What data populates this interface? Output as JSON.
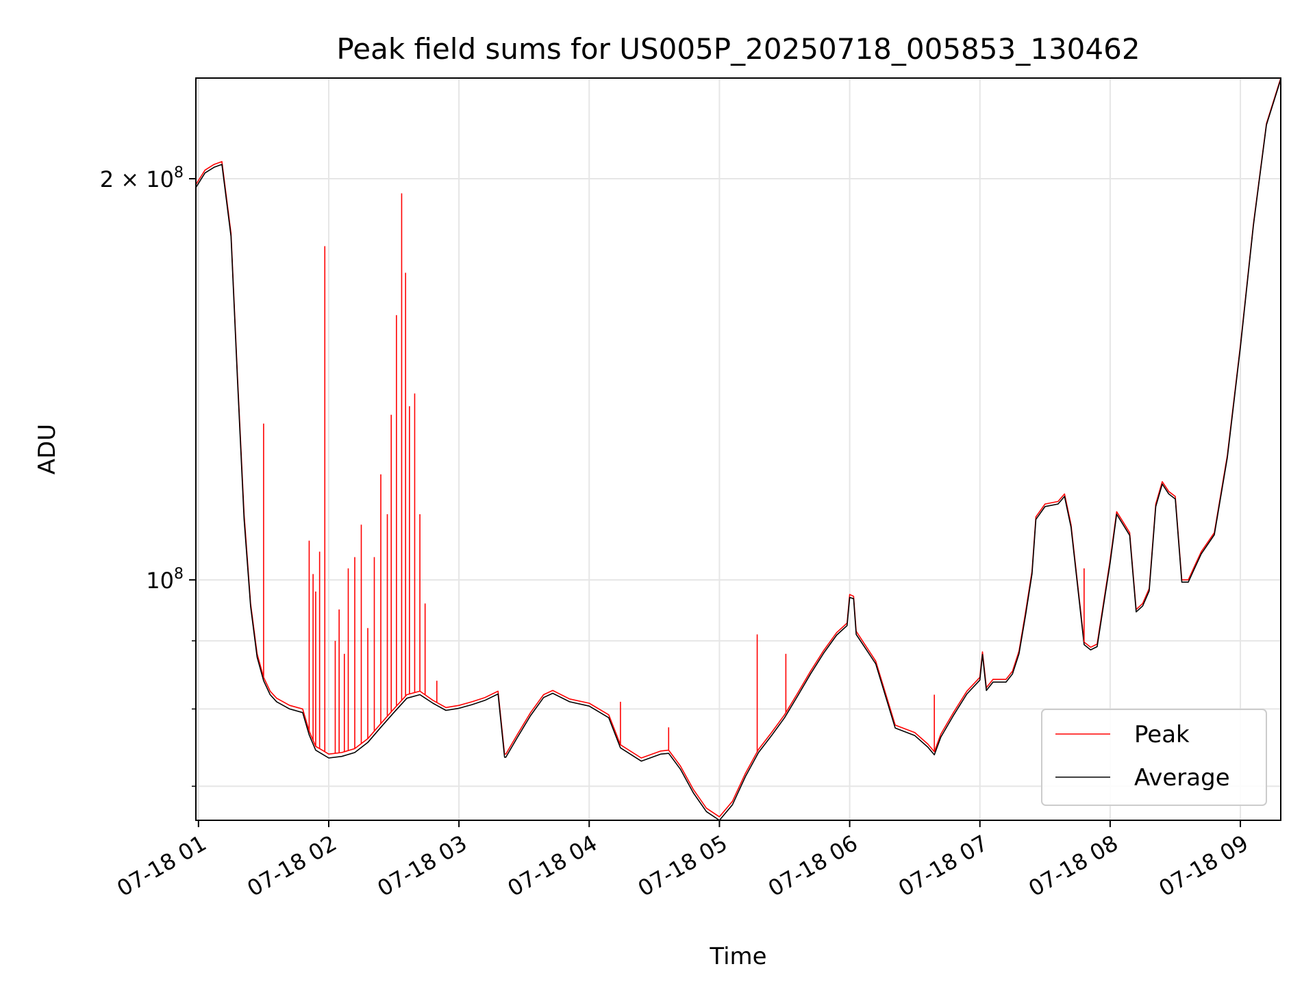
{
  "chart_data": {
    "type": "line",
    "title": "Peak field sums for US005P_20250718_005853_130462",
    "xlabel": "Time",
    "ylabel": "ADU",
    "x_unit": "hours since 07-18 00:00",
    "yscale": "log",
    "xlim": [
      0.98,
      9.31
    ],
    "ylim": [
      66000000,
      238000000
    ],
    "grid": true,
    "legend_position": "lower-right",
    "x_ticks": [
      {
        "value": 1,
        "label": "07-18 01"
      },
      {
        "value": 2,
        "label": "07-18 02"
      },
      {
        "value": 3,
        "label": "07-18 03"
      },
      {
        "value": 4,
        "label": "07-18 04"
      },
      {
        "value": 5,
        "label": "07-18 05"
      },
      {
        "value": 6,
        "label": "07-18 06"
      },
      {
        "value": 7,
        "label": "07-18 07"
      },
      {
        "value": 8,
        "label": "07-18 08"
      },
      {
        "value": 9,
        "label": "07-18 09"
      }
    ],
    "y_major_ticks": [
      {
        "value": 100000000,
        "base": "10",
        "exp": "8",
        "coef": ""
      },
      {
        "value": 200000000,
        "base": "10",
        "exp": "8",
        "coef": "2 × "
      }
    ],
    "y_minor_ticks": [
      70000000,
      80000000,
      90000000
    ],
    "series": [
      {
        "name": "Peak",
        "color": "#ff0000",
        "x": [
          0.98,
          1.05,
          1.12,
          1.18,
          1.25,
          1.3,
          1.35,
          1.4,
          1.45,
          1.5,
          1.55,
          1.6,
          1.7,
          1.8,
          1.85,
          1.9,
          1.95,
          2.0,
          2.1,
          2.2,
          2.3,
          2.4,
          2.5,
          2.6,
          2.7,
          2.8,
          2.9,
          3.0,
          3.1,
          3.2,
          3.3,
          3.35,
          3.36,
          3.45,
          3.55,
          3.65,
          3.72,
          3.85,
          4.0,
          4.15,
          4.24,
          4.4,
          4.55,
          4.61,
          4.7,
          4.8,
          4.9,
          5.0,
          5.1,
          5.2,
          5.3,
          5.4,
          5.5,
          5.6,
          5.7,
          5.8,
          5.9,
          5.98,
          6.0,
          6.03,
          6.05,
          6.2,
          6.35,
          6.5,
          6.6,
          6.65,
          6.7,
          6.8,
          6.9,
          7.0,
          7.02,
          7.05,
          7.1,
          7.15,
          7.2,
          7.25,
          7.3,
          7.35,
          7.4,
          7.43,
          7.5,
          7.6,
          7.65,
          7.7,
          7.8,
          7.85,
          7.9,
          8.0,
          8.05,
          8.1,
          8.15,
          8.2,
          8.25,
          8.3,
          8.35,
          8.4,
          8.45,
          8.5,
          8.55,
          8.6,
          8.65,
          8.7,
          8.8,
          8.9,
          9.0,
          9.1,
          9.2,
          9.31
        ],
        "y": [
          198000000,
          203000000,
          205000000,
          206000000,
          182000000,
          142000000,
          112000000,
          96000000,
          88000000,
          84500000,
          82500000,
          81500000,
          80500000,
          80000000,
          77000000,
          75000000,
          74500000,
          74000000,
          74200000,
          74700000,
          76000000,
          78000000,
          80000000,
          82000000,
          82500000,
          81200000,
          80200000,
          80500000,
          81000000,
          81600000,
          82500000,
          74000000,
          74000000,
          76600000,
          79500000,
          82000000,
          82600000,
          81400000,
          80800000,
          79200000,
          75200000,
          73500000,
          74400000,
          74500000,
          72500000,
          69600000,
          67400000,
          66400000,
          68200000,
          71600000,
          74600000,
          76800000,
          79200000,
          82200000,
          85400000,
          88500000,
          91300000,
          92800000,
          97500000,
          97200000,
          91500000,
          86900000,
          77800000,
          76800000,
          75300000,
          74300000,
          76600000,
          79600000,
          82500000,
          84500000,
          88300000,
          83000000,
          84200000,
          84200000,
          84200000,
          85400000,
          88400000,
          94500000,
          101500000,
          111500000,
          114000000,
          114500000,
          116000000,
          110000000,
          89800000,
          89000000,
          89500000,
          103500000,
          112500000,
          110500000,
          108500000,
          95000000,
          96000000,
          98500000,
          114000000,
          118500000,
          116500000,
          115500000,
          100000000,
          100000000,
          102500000,
          105000000,
          108500000,
          124000000,
          150000000,
          185000000,
          220000000,
          238000000
        ]
      },
      {
        "name": "Average",
        "color": "#000000",
        "x": [
          0.98,
          1.05,
          1.12,
          1.18,
          1.25,
          1.3,
          1.35,
          1.4,
          1.45,
          1.5,
          1.55,
          1.6,
          1.7,
          1.8,
          1.85,
          1.9,
          1.95,
          2.0,
          2.1,
          2.2,
          2.3,
          2.4,
          2.5,
          2.6,
          2.7,
          2.8,
          2.9,
          3.0,
          3.1,
          3.2,
          3.3,
          3.35,
          3.36,
          3.45,
          3.55,
          3.65,
          3.72,
          3.85,
          4.0,
          4.15,
          4.24,
          4.4,
          4.55,
          4.61,
          4.7,
          4.8,
          4.9,
          5.0,
          5.1,
          5.2,
          5.3,
          5.4,
          5.5,
          5.6,
          5.7,
          5.8,
          5.9,
          5.98,
          6.0,
          6.03,
          6.05,
          6.2,
          6.35,
          6.5,
          6.6,
          6.65,
          6.7,
          6.8,
          6.9,
          7.0,
          7.02,
          7.05,
          7.1,
          7.15,
          7.2,
          7.25,
          7.3,
          7.35,
          7.4,
          7.43,
          7.5,
          7.6,
          7.65,
          7.7,
          7.8,
          7.85,
          7.9,
          8.0,
          8.05,
          8.1,
          8.15,
          8.2,
          8.25,
          8.3,
          8.35,
          8.4,
          8.45,
          8.5,
          8.55,
          8.6,
          8.65,
          8.7,
          8.8,
          8.9,
          9.0,
          9.1,
          9.2,
          9.31
        ],
        "y": [
          197000000,
          202000000,
          204000000,
          205000000,
          181000000,
          141000000,
          111000000,
          95500000,
          87500000,
          84000000,
          82000000,
          81000000,
          80000000,
          79500000,
          76500000,
          74500000,
          74000000,
          73500000,
          73700000,
          74200000,
          75500000,
          77500000,
          79500000,
          81500000,
          82000000,
          80800000,
          79800000,
          80100000,
          80600000,
          81200000,
          82100000,
          73600000,
          73600000,
          76200000,
          79100000,
          81600000,
          82200000,
          81000000,
          80400000,
          78800000,
          74800000,
          73100000,
          74000000,
          74100000,
          72100000,
          69200000,
          67000000,
          66000000,
          67800000,
          71200000,
          74200000,
          76400000,
          78800000,
          81800000,
          85000000,
          88100000,
          90900000,
          92400000,
          97000000,
          96800000,
          91000000,
          86500000,
          77400000,
          76400000,
          74900000,
          73900000,
          76200000,
          79200000,
          82100000,
          84100000,
          87900000,
          82600000,
          83800000,
          83800000,
          83800000,
          85000000,
          88000000,
          94000000,
          101000000,
          111000000,
          113500000,
          114000000,
          115500000,
          109500000,
          89400000,
          88600000,
          89100000,
          103000000,
          112000000,
          110000000,
          108000000,
          94600000,
          95600000,
          98100000,
          113500000,
          118000000,
          116000000,
          115000000,
          99600000,
          99600000,
          102100000,
          104600000,
          108100000,
          123500000,
          149500000,
          184500000,
          219500000,
          237500000
        ]
      }
    ],
    "peak_spikes": [
      {
        "x": 1.5,
        "y": 131000000
      },
      {
        "x": 1.85,
        "y": 107000000
      },
      {
        "x": 1.88,
        "y": 101000000
      },
      {
        "x": 1.9,
        "y": 98000000
      },
      {
        "x": 1.93,
        "y": 105000000
      },
      {
        "x": 1.97,
        "y": 178000000
      },
      {
        "x": 2.05,
        "y": 90000000
      },
      {
        "x": 2.08,
        "y": 95000000
      },
      {
        "x": 2.12,
        "y": 88000000
      },
      {
        "x": 2.15,
        "y": 102000000
      },
      {
        "x": 2.2,
        "y": 104000000
      },
      {
        "x": 2.25,
        "y": 110000000
      },
      {
        "x": 2.3,
        "y": 92000000
      },
      {
        "x": 2.35,
        "y": 104000000
      },
      {
        "x": 2.4,
        "y": 120000000
      },
      {
        "x": 2.45,
        "y": 112000000
      },
      {
        "x": 2.48,
        "y": 133000000
      },
      {
        "x": 2.52,
        "y": 158000000
      },
      {
        "x": 2.56,
        "y": 195000000
      },
      {
        "x": 2.59,
        "y": 170000000
      },
      {
        "x": 2.62,
        "y": 135000000
      },
      {
        "x": 2.66,
        "y": 138000000
      },
      {
        "x": 2.7,
        "y": 112000000
      },
      {
        "x": 2.74,
        "y": 96000000
      },
      {
        "x": 2.83,
        "y": 84000000
      },
      {
        "x": 4.24,
        "y": 81000000
      },
      {
        "x": 4.61,
        "y": 77500000
      },
      {
        "x": 5.29,
        "y": 91000000
      },
      {
        "x": 5.51,
        "y": 88000000
      },
      {
        "x": 6.65,
        "y": 82000000
      },
      {
        "x": 7.8,
        "y": 102000000
      }
    ]
  }
}
